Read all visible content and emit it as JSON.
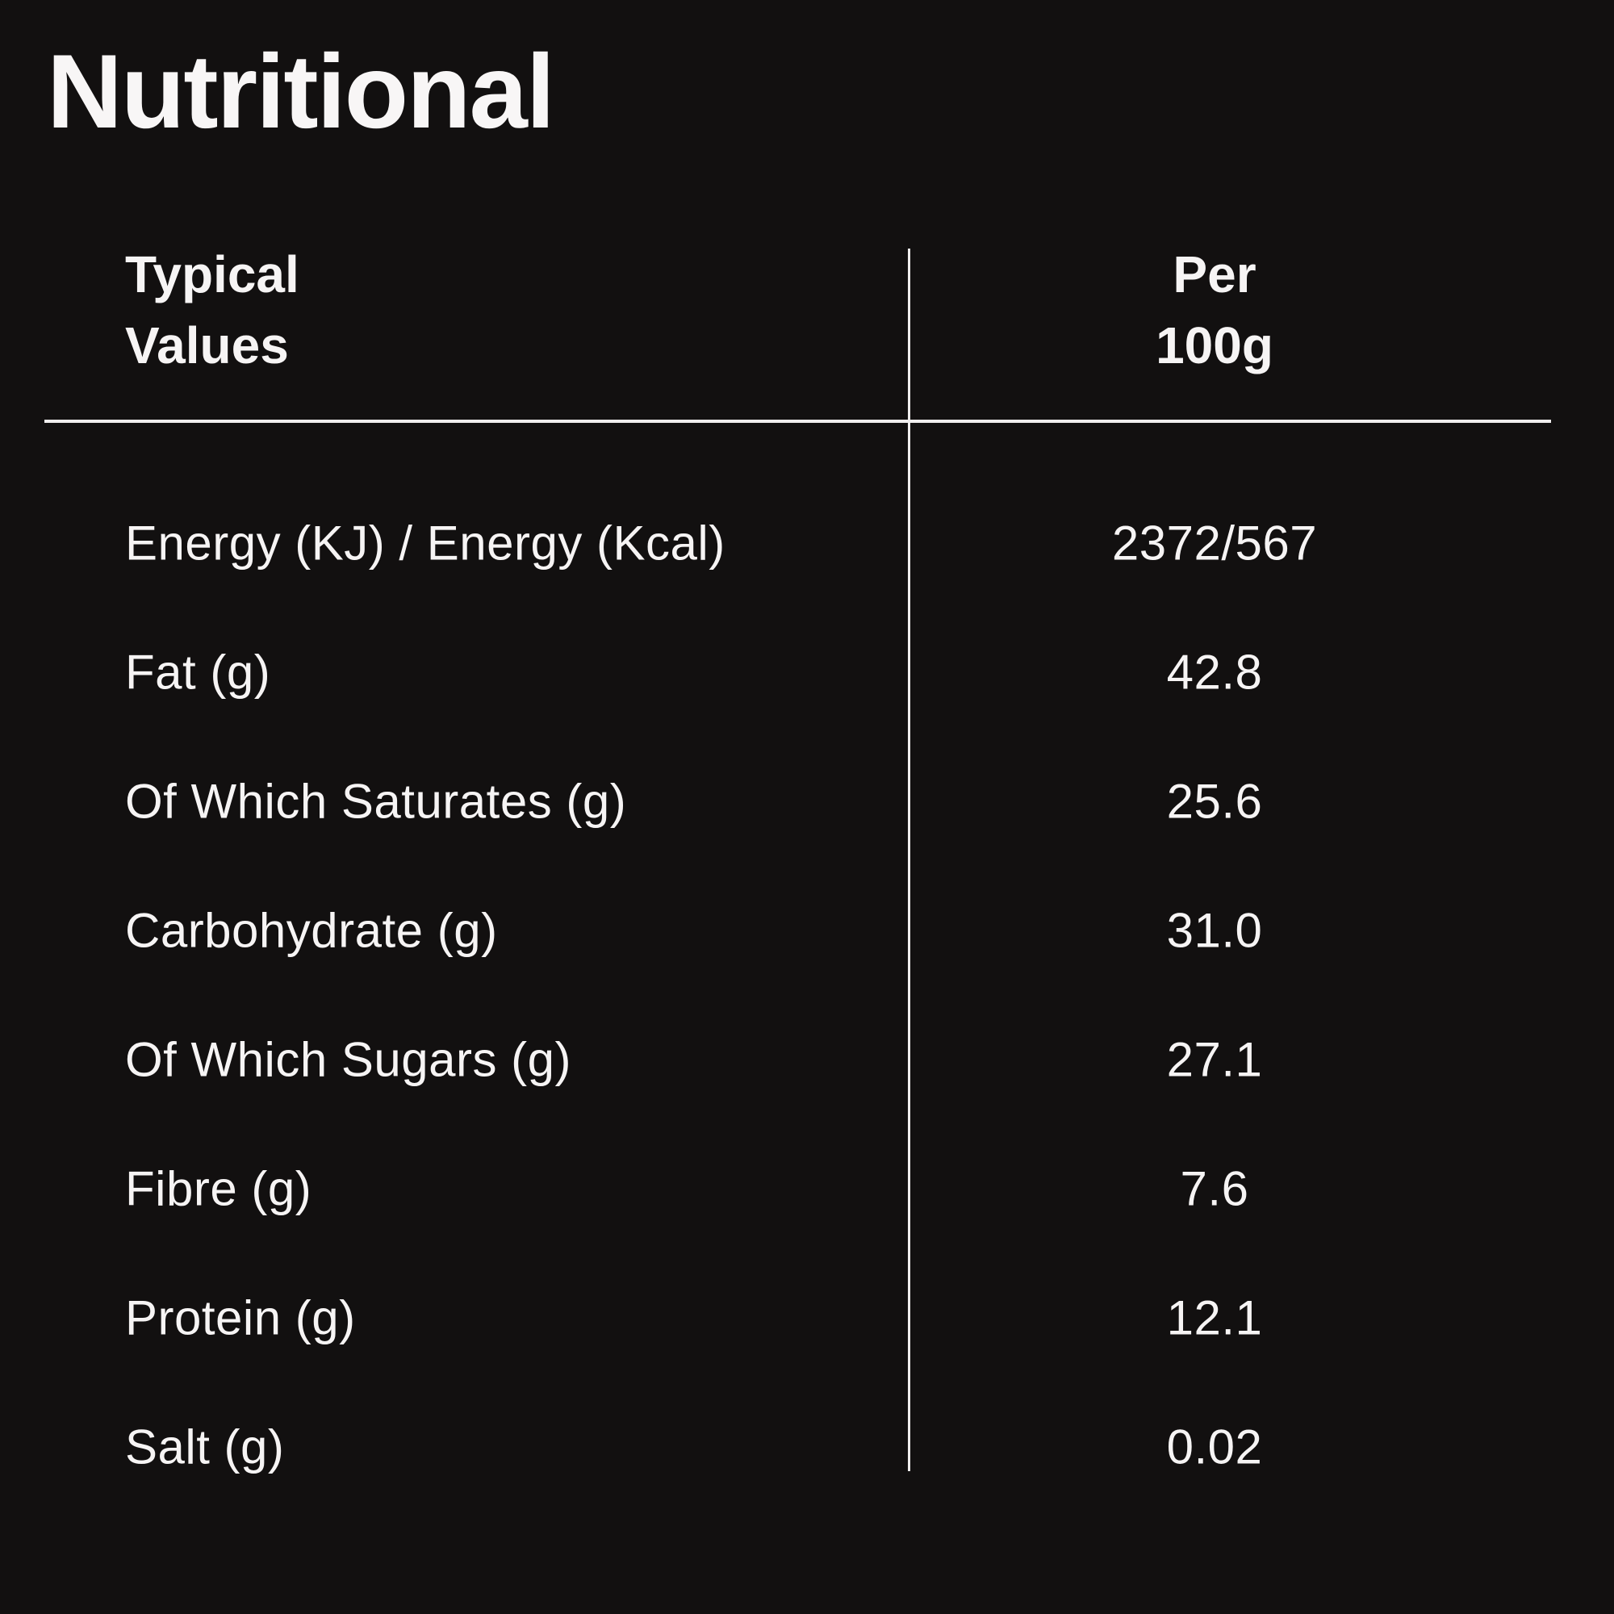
{
  "page": {
    "title": "Nutritional"
  },
  "table": {
    "header": {
      "values_column": "Typical\nValues",
      "amount_column": "Per\n100g"
    },
    "rows": [
      {
        "label": "Energy (KJ) / Energy (Kcal)",
        "value": "2372/567"
      },
      {
        "label": "Fat (g)",
        "value": "42.8"
      },
      {
        "label": "Of Which Saturates (g)",
        "value": "25.6"
      },
      {
        "label": "Carbohydrate (g)",
        "value": "31.0"
      },
      {
        "label": "Of Which Sugars (g)",
        "value": "27.1"
      },
      {
        "label": "Fibre (g)",
        "value": "7.6"
      },
      {
        "label": "Protein (g)",
        "value": "12.1"
      },
      {
        "label": "Salt (g)",
        "value": "0.02"
      }
    ]
  },
  "colors": {
    "background": "#121010",
    "text": "#f6f4f4",
    "rule": "#f0eeee"
  }
}
